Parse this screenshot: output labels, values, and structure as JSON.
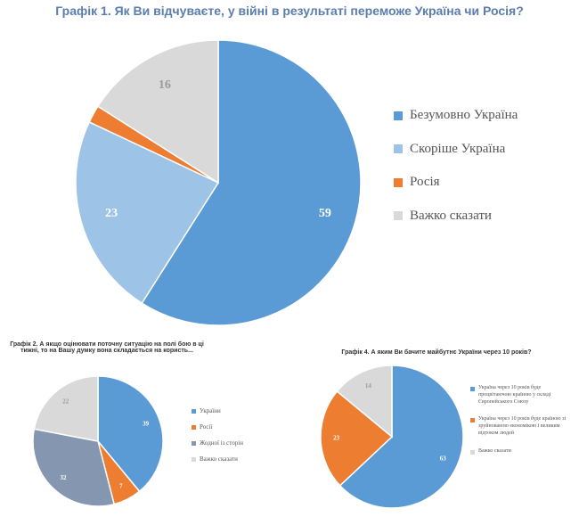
{
  "chart_data": [
    {
      "type": "pie",
      "title": "Графік 1. Як Ви відчуваєте, у війні в результаті переможе Україна чи Росія?",
      "categories": [
        "Безумовно Україна",
        "Скоріше Україна",
        "Росія",
        "Важко сказати"
      ],
      "values": [
        59,
        23,
        2,
        16
      ],
      "colors": [
        "#5b9bd5",
        "#9dc3e6",
        "#ed7d31",
        "#d9d9d9"
      ]
    },
    {
      "type": "pie",
      "title": "Графік 2. А якщо оцінювати поточну ситуацію на полі бою в ці тижні, то на Вашу думку вона складається на користь...",
      "categories": [
        "України",
        "Росії",
        "Жодної із сторін",
        "Важко сказати"
      ],
      "values": [
        39,
        7,
        32,
        22
      ],
      "colors": [
        "#5b9bd5",
        "#ed7d31",
        "#8496b0",
        "#d9d9d9"
      ]
    },
    {
      "type": "pie",
      "title": "Графік 4. А яким Ви бачите майбутнє України через 10 років?",
      "categories": [
        "Україна через 10 років буде процвітаючою країною у складі Європейського Союзу",
        "Україна через 10 років буде країною зі зруйнованою економікою і великим відтоком людей",
        "Важко сказати"
      ],
      "values": [
        63,
        23,
        14
      ],
      "colors": [
        "#5b9bd5",
        "#ed7d31",
        "#d9d9d9"
      ]
    }
  ]
}
